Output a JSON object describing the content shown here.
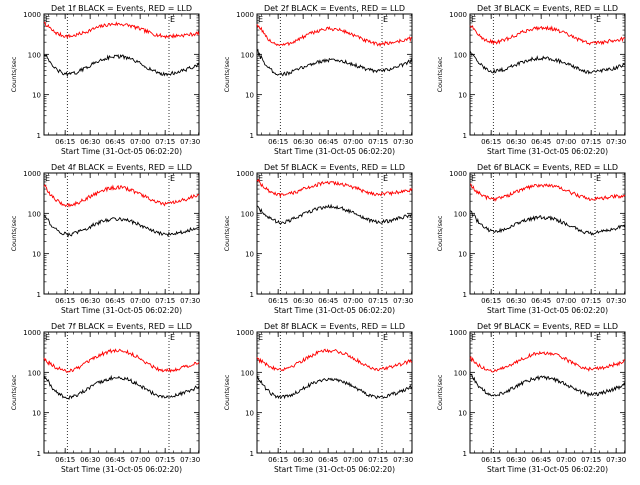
{
  "chart_data": [
    {
      "type": "line",
      "title": "Det 1f BLACK = Events, RED = LLD",
      "ylabel": "Counts/sec",
      "xlabel": "Start Time (31-Oct-05 06:02:20)",
      "yscale": "log",
      "ylim": [
        1,
        1000
      ],
      "ytick_labels": [
        "1",
        "10",
        "100",
        "1000"
      ],
      "xlim_minutes_after_start": [
        0,
        93
      ],
      "xtick_labels": [
        "06:15",
        "06:30",
        "06:45",
        "07:00",
        "07:15",
        "07:30"
      ],
      "xtick_minutes_after_start": [
        12.7,
        27.7,
        42.7,
        57.7,
        72.7,
        87.7
      ],
      "event_markers": [
        {
          "label": "E",
          "minute": 0
        },
        {
          "label": "E",
          "minute": 75
        }
      ],
      "dotted_lines_minutes": [
        14,
        75
      ],
      "series": [
        {
          "name": "LLD",
          "color": "#ff0000",
          "profile": {
            "start": 600,
            "low1": 280,
            "high": 540,
            "low2": 280,
            "end": 330
          }
        },
        {
          "name": "Events",
          "color": "#000000",
          "profile": {
            "start": 100,
            "low1": 32,
            "high": 85,
            "low2": 32,
            "end": 55
          }
        }
      ]
    },
    {
      "type": "line",
      "title": "Det 2f BLACK = Events, RED = LLD",
      "ylabel": "Counts/sec",
      "xlabel": "Start Time (31-Oct-05 06:02:20)",
      "yscale": "log",
      "ylim": [
        1,
        1000
      ],
      "ytick_labels": [
        "1",
        "10",
        "100",
        "1000"
      ],
      "xlim_minutes_after_start": [
        0,
        93
      ],
      "xtick_labels": [
        "06:15",
        "06:30",
        "06:45",
        "07:00",
        "07:15",
        "07:30"
      ],
      "xtick_minutes_after_start": [
        12.7,
        27.7,
        42.7,
        57.7,
        72.7,
        87.7
      ],
      "event_markers": [
        {
          "label": "E",
          "minute": 0
        },
        {
          "label": "E",
          "minute": 75
        }
      ],
      "dotted_lines_minutes": [
        14,
        75
      ],
      "series": [
        {
          "name": "LLD",
          "color": "#ff0000",
          "profile": {
            "start": 560,
            "low1": 170,
            "high": 420,
            "low2": 180,
            "end": 250
          }
        },
        {
          "name": "Events",
          "color": "#000000",
          "profile": {
            "start": 120,
            "low1": 32,
            "high": 75,
            "low2": 38,
            "end": 70
          }
        }
      ]
    },
    {
      "type": "line",
      "title": "Det 3f BLACK = Events, RED = LLD",
      "ylabel": "Counts/sec",
      "xlabel": "Start Time (31-Oct-05 06:02:20)",
      "yscale": "log",
      "ylim": [
        1,
        1000
      ],
      "ytick_labels": [
        "1",
        "10",
        "100",
        "1000"
      ],
      "xlim_minutes_after_start": [
        0,
        93
      ],
      "xtick_labels": [
        "06:15",
        "06:30",
        "06:45",
        "07:00",
        "07:15",
        "07:30"
      ],
      "xtick_minutes_after_start": [
        12.7,
        27.7,
        42.7,
        57.7,
        72.7,
        87.7
      ],
      "event_markers": [
        {
          "label": "E",
          "minute": 0
        },
        {
          "label": "E",
          "minute": 75
        }
      ],
      "dotted_lines_minutes": [
        14,
        75
      ],
      "series": [
        {
          "name": "LLD",
          "color": "#ff0000",
          "profile": {
            "start": 520,
            "low1": 200,
            "high": 450,
            "low2": 190,
            "end": 250
          }
        },
        {
          "name": "Events",
          "color": "#000000",
          "profile": {
            "start": 120,
            "low1": 38,
            "high": 80,
            "low2": 36,
            "end": 55
          }
        }
      ]
    },
    {
      "type": "line",
      "title": "Det 4f BLACK = Events, RED = LLD",
      "ylabel": "Counts/sec",
      "xlabel": "Start Time (31-Oct-05 06:02:20)",
      "yscale": "log",
      "ylim": [
        1,
        1000
      ],
      "ytick_labels": [
        "1",
        "10",
        "100",
        "1000"
      ],
      "xlim_minutes_after_start": [
        0,
        93
      ],
      "xtick_labels": [
        "06:15",
        "06:30",
        "06:45",
        "07:00",
        "07:15",
        "07:30"
      ],
      "xtick_minutes_after_start": [
        12.7,
        27.7,
        42.7,
        57.7,
        72.7,
        87.7
      ],
      "event_markers": [
        {
          "label": "E",
          "minute": 0
        },
        {
          "label": "E",
          "minute": 75
        }
      ],
      "dotted_lines_minutes": [
        14,
        75
      ],
      "series": [
        {
          "name": "LLD",
          "color": "#ff0000",
          "profile": {
            "start": 480,
            "low1": 160,
            "high": 430,
            "low2": 170,
            "end": 300
          }
        },
        {
          "name": "Events",
          "color": "#000000",
          "profile": {
            "start": 90,
            "low1": 30,
            "high": 70,
            "low2": 30,
            "end": 45
          }
        }
      ]
    },
    {
      "type": "line",
      "title": "Det 5f BLACK = Events, RED = LLD",
      "ylabel": "Counts/sec",
      "xlabel": "Start Time (31-Oct-05 06:02:20)",
      "yscale": "log",
      "ylim": [
        1,
        1000
      ],
      "ytick_labels": [
        "1",
        "10",
        "100",
        "1000"
      ],
      "xlim_minutes_after_start": [
        0,
        93
      ],
      "xtick_labels": [
        "06:15",
        "06:30",
        "06:45",
        "07:00",
        "07:15",
        "07:30"
      ],
      "xtick_minutes_after_start": [
        12.7,
        27.7,
        42.7,
        57.7,
        72.7,
        87.7
      ],
      "event_markers": [
        {
          "label": "E",
          "minute": 0
        },
        {
          "label": "E",
          "minute": 75
        }
      ],
      "dotted_lines_minutes": [
        14,
        75
      ],
      "series": [
        {
          "name": "LLD",
          "color": "#ff0000",
          "profile": {
            "start": 700,
            "low1": 280,
            "high": 560,
            "low2": 300,
            "end": 380
          }
        },
        {
          "name": "Events",
          "color": "#000000",
          "profile": {
            "start": 160,
            "low1": 60,
            "high": 140,
            "low2": 60,
            "end": 95
          }
        }
      ]
    },
    {
      "type": "line",
      "title": "Det 6f BLACK = Events, RED = LLD",
      "ylabel": "Counts/sec",
      "xlabel": "Start Time (31-Oct-05 06:02:20)",
      "yscale": "log",
      "ylim": [
        1,
        1000
      ],
      "ytick_labels": [
        "1",
        "10",
        "100",
        "1000"
      ],
      "xlim_minutes_after_start": [
        0,
        93
      ],
      "xtick_labels": [
        "06:15",
        "06:30",
        "06:45",
        "07:00",
        "07:15",
        "07:30"
      ],
      "xtick_minutes_after_start": [
        12.7,
        27.7,
        42.7,
        57.7,
        72.7,
        87.7
      ],
      "event_markers": [
        {
          "label": "E",
          "minute": 0
        },
        {
          "label": "E",
          "minute": 75
        }
      ],
      "dotted_lines_minutes": [
        14,
        75
      ],
      "series": [
        {
          "name": "LLD",
          "color": "#ff0000",
          "profile": {
            "start": 500,
            "low1": 230,
            "high": 480,
            "low2": 230,
            "end": 280
          }
        },
        {
          "name": "Events",
          "color": "#000000",
          "profile": {
            "start": 120,
            "low1": 36,
            "high": 80,
            "low2": 32,
            "end": 50
          }
        }
      ]
    },
    {
      "type": "line",
      "title": "Det 7f BLACK = Events, RED = LLD",
      "ylabel": "Counts/sec",
      "xlabel": "Start Time (31-Oct-05 06:02:20)",
      "yscale": "log",
      "ylim": [
        1,
        1000
      ],
      "ytick_labels": [
        "1",
        "10",
        "100",
        "1000"
      ],
      "xlim_minutes_after_start": [
        0,
        93
      ],
      "xtick_labels": [
        "06:15",
        "06:30",
        "06:45",
        "07:00",
        "07:15",
        "07:30"
      ],
      "xtick_minutes_after_start": [
        12.7,
        27.7,
        42.7,
        57.7,
        72.7,
        87.7
      ],
      "event_markers": [
        {
          "label": "E",
          "minute": 0
        },
        {
          "label": "E",
          "minute": 75
        }
      ],
      "dotted_lines_minutes": [
        14,
        75
      ],
      "series": [
        {
          "name": "LLD",
          "color": "#ff0000",
          "profile": {
            "start": 220,
            "low1": 110,
            "high": 330,
            "low2": 110,
            "end": 180
          }
        },
        {
          "name": "Events",
          "color": "#000000",
          "profile": {
            "start": 80,
            "low1": 24,
            "high": 70,
            "low2": 24,
            "end": 45
          }
        }
      ]
    },
    {
      "type": "line",
      "title": "Det 8f BLACK = Events, RED = LLD",
      "ylabel": "Counts/sec",
      "xlabel": "Start Time (31-Oct-05 06:02:20)",
      "yscale": "log",
      "ylim": [
        1,
        1000
      ],
      "ytick_labels": [
        "1",
        "10",
        "100",
        "1000"
      ],
      "xlim_minutes_after_start": [
        0,
        93
      ],
      "xtick_labels": [
        "06:15",
        "06:30",
        "06:45",
        "07:00",
        "07:15",
        "07:30"
      ],
      "xtick_minutes_after_start": [
        12.7,
        27.7,
        42.7,
        57.7,
        72.7,
        87.7
      ],
      "event_markers": [
        {
          "label": "E",
          "minute": 0
        },
        {
          "label": "E",
          "minute": 75
        }
      ],
      "dotted_lines_minutes": [
        14,
        75
      ],
      "series": [
        {
          "name": "LLD",
          "color": "#ff0000",
          "profile": {
            "start": 230,
            "low1": 120,
            "high": 330,
            "low2": 120,
            "end": 200
          }
        },
        {
          "name": "Events",
          "color": "#000000",
          "profile": {
            "start": 80,
            "low1": 24,
            "high": 65,
            "low2": 24,
            "end": 45
          }
        }
      ]
    },
    {
      "type": "line",
      "title": "Det 9f BLACK = Events, RED = LLD",
      "ylabel": "Counts/sec",
      "xlabel": "Start Time (31-Oct-05 06:02:20)",
      "yscale": "log",
      "ylim": [
        1,
        1000
      ],
      "ytick_labels": [
        "1",
        "10",
        "100",
        "1000"
      ],
      "xlim_minutes_after_start": [
        0,
        93
      ],
      "xtick_labels": [
        "06:15",
        "06:30",
        "06:45",
        "07:00",
        "07:15",
        "07:30"
      ],
      "xtick_minutes_after_start": [
        12.7,
        27.7,
        42.7,
        57.7,
        72.7,
        87.7
      ],
      "event_markers": [
        {
          "label": "E",
          "minute": 0
        },
        {
          "label": "E",
          "minute": 75
        }
      ],
      "dotted_lines_minutes": [
        14,
        75
      ],
      "series": [
        {
          "name": "LLD",
          "color": "#ff0000",
          "profile": {
            "start": 220,
            "low1": 110,
            "high": 300,
            "low2": 120,
            "end": 190
          }
        },
        {
          "name": "Events",
          "color": "#000000",
          "profile": {
            "start": 90,
            "low1": 28,
            "high": 70,
            "low2": 28,
            "end": 50
          }
        }
      ]
    }
  ]
}
